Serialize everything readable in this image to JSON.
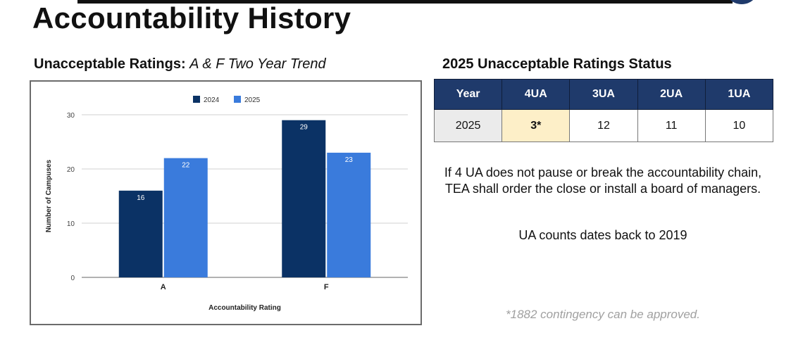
{
  "page": {
    "title": "Accountability History"
  },
  "chart_heading": {
    "bold": "Unacceptable Ratings:",
    "italic": "A & F Two Year Trend"
  },
  "chart_data": {
    "type": "bar",
    "categories": [
      "A",
      "F"
    ],
    "series": [
      {
        "name": "2024",
        "values": [
          16,
          29
        ],
        "color": "#0b3265"
      },
      {
        "name": "2025",
        "values": [
          22,
          23
        ],
        "color": "#3a7bdc"
      }
    ],
    "xlabel": "Accountability Rating",
    "ylabel": "Number of Campuses",
    "ylim": [
      0,
      30
    ],
    "yticks": [
      0,
      10,
      20,
      30
    ],
    "grid": true,
    "legend": "top-center",
    "data_labels": true
  },
  "status": {
    "heading": "2025 Unacceptable Ratings Status",
    "headers": [
      "Year",
      "4UA",
      "3UA",
      "2UA",
      "1UA"
    ],
    "row": [
      "2025",
      "3*",
      "12",
      "11",
      "10"
    ],
    "header_color": "#1f3a6b",
    "highlight_color": "#fdefc8"
  },
  "notes": {
    "main": "If 4 UA does not pause or break the accountability chain, TEA shall order the close or install a board of managers.",
    "sub": "UA counts dates back to 2019",
    "footnote": "*1882 contingency can be approved."
  }
}
